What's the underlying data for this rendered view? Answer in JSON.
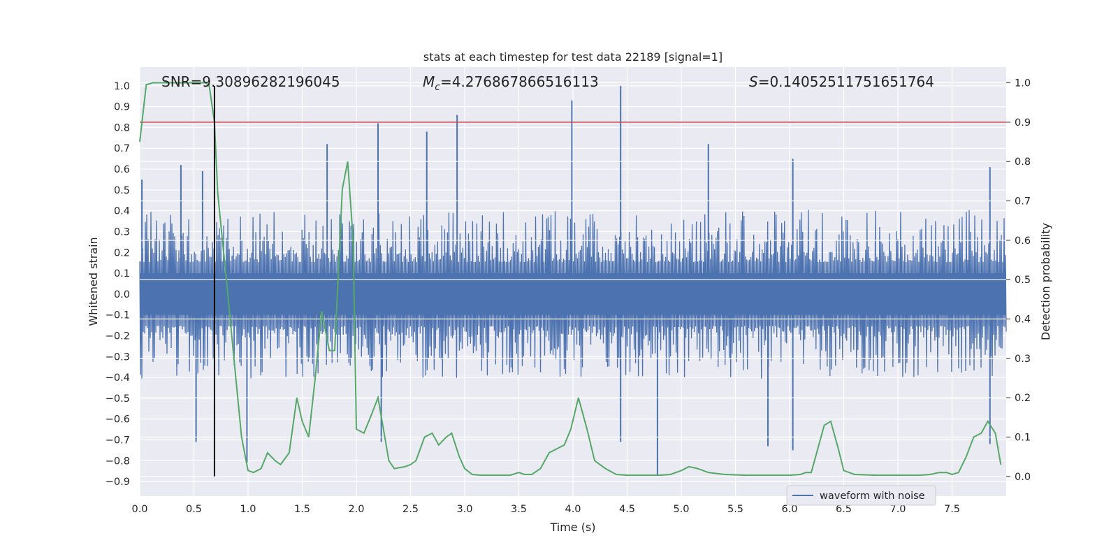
{
  "chart_data": {
    "type": "line",
    "title": "stats at each timestep for test data 22189 [signal=1]",
    "xlabel": "Time (s)",
    "ylabel_left": "Whitened strain",
    "ylabel_right": "Detection probability",
    "xlim": [
      0.0,
      8.0
    ],
    "ylim_left": [
      -0.97,
      1.09
    ],
    "ylim_right": [
      -0.05,
      1.04
    ],
    "x_ticks": [
      "0.0",
      "0.5",
      "1.0",
      "1.5",
      "2.0",
      "2.5",
      "3.0",
      "3.5",
      "4.0",
      "4.5",
      "5.0",
      "5.5",
      "6.0",
      "6.5",
      "7.0",
      "7.5"
    ],
    "y_ticks_left": [
      "-0.9",
      "-0.8",
      "-0.7",
      "-0.6",
      "-0.5",
      "-0.4",
      "-0.3",
      "-0.2",
      "-0.1",
      "0.0",
      "0.1",
      "0.2",
      "0.3",
      "0.4",
      "0.5",
      "0.6",
      "0.7",
      "0.8",
      "0.9",
      "1.0"
    ],
    "y_ticks_right": [
      "0.0",
      "0.1",
      "0.2",
      "0.3",
      "0.4",
      "0.5",
      "0.6",
      "0.7",
      "0.8",
      "0.9",
      "1.0"
    ],
    "grid": true,
    "annotations": {
      "snr": "SNR=9.30896282196045",
      "mc_symbol": "M",
      "mc_sub": "c",
      "mc_value": "=4.276867866516113",
      "s_symbol": "S",
      "s_value": "=0.14052511751651764"
    },
    "threshold": {
      "axis": "right",
      "value": 0.9,
      "color": "#c44e52"
    },
    "marker_line": {
      "x": 0.69,
      "y_range": [
        -0.875,
        1.0
      ],
      "color": "#000000"
    },
    "series": [
      {
        "name": "waveform with noise",
        "axis": "left",
        "style": "dense-noise",
        "color": "#4c72b0",
        "envelope": {
          "typical_abs": 0.28,
          "core_band": [
            -0.1,
            0.1
          ]
        },
        "peaks": [
          {
            "x": 0.02,
            "y": 0.55
          },
          {
            "x": 0.38,
            "y": 0.62
          },
          {
            "x": 0.58,
            "y": 0.59
          },
          {
            "x": 1.73,
            "y": 0.72
          },
          {
            "x": 2.2,
            "y": 0.82
          },
          {
            "x": 2.65,
            "y": 0.78
          },
          {
            "x": 2.93,
            "y": 0.86
          },
          {
            "x": 3.99,
            "y": 0.93
          },
          {
            "x": 4.44,
            "y": 1.0
          },
          {
            "x": 5.25,
            "y": 0.72
          },
          {
            "x": 6.03,
            "y": 0.65
          },
          {
            "x": 7.85,
            "y": 0.61
          }
        ],
        "troughs": [
          {
            "x": 0.52,
            "y": -0.71
          },
          {
            "x": 0.99,
            "y": -0.81
          },
          {
            "x": 2.23,
            "y": -0.71
          },
          {
            "x": 4.44,
            "y": -0.71
          },
          {
            "x": 4.78,
            "y": -0.87
          },
          {
            "x": 5.8,
            "y": -0.73
          },
          {
            "x": 6.03,
            "y": -0.75
          },
          {
            "x": 7.85,
            "y": -0.72
          }
        ]
      },
      {
        "name": "",
        "axis": "right",
        "color": "#55a868",
        "x": [
          0.0,
          0.06,
          0.12,
          0.2,
          0.3,
          0.4,
          0.5,
          0.6,
          0.64,
          0.69,
          0.72,
          0.8,
          0.88,
          0.94,
          1.0,
          1.05,
          1.12,
          1.18,
          1.25,
          1.3,
          1.38,
          1.45,
          1.5,
          1.56,
          1.62,
          1.68,
          1.75,
          1.8,
          1.87,
          1.92,
          1.97,
          2.0,
          2.07,
          2.13,
          2.2,
          2.3,
          2.35,
          2.45,
          2.5,
          2.55,
          2.63,
          2.7,
          2.76,
          2.83,
          2.88,
          2.95,
          3.0,
          3.07,
          3.15,
          3.25,
          3.35,
          3.42,
          3.5,
          3.55,
          3.62,
          3.7,
          3.78,
          3.85,
          3.92,
          3.98,
          4.05,
          4.13,
          4.2,
          4.3,
          4.4,
          4.5,
          4.6,
          4.7,
          4.8,
          4.9,
          5.0,
          5.07,
          5.15,
          5.25,
          5.4,
          5.6,
          5.8,
          6.0,
          6.1,
          6.15,
          6.2,
          6.25,
          6.32,
          6.38,
          6.45,
          6.5,
          6.6,
          6.8,
          7.0,
          7.2,
          7.3,
          7.38,
          7.45,
          7.5,
          7.56,
          7.63,
          7.7,
          7.77,
          7.83,
          7.9,
          7.95
        ],
        "y": [
          0.85,
          0.995,
          1.0,
          1.0,
          1.0,
          1.0,
          1.0,
          1.0,
          0.995,
          0.9,
          0.72,
          0.5,
          0.27,
          0.1,
          0.015,
          0.01,
          0.02,
          0.06,
          0.04,
          0.03,
          0.06,
          0.2,
          0.14,
          0.1,
          0.25,
          0.42,
          0.32,
          0.32,
          0.73,
          0.8,
          0.6,
          0.12,
          0.11,
          0.15,
          0.2,
          0.04,
          0.02,
          0.025,
          0.03,
          0.04,
          0.1,
          0.11,
          0.08,
          0.1,
          0.11,
          0.05,
          0.02,
          0.005,
          0.003,
          0.003,
          0.003,
          0.003,
          0.01,
          0.005,
          0.005,
          0.02,
          0.06,
          0.07,
          0.08,
          0.12,
          0.2,
          0.12,
          0.04,
          0.02,
          0.005,
          0.003,
          0.003,
          0.003,
          0.003,
          0.005,
          0.015,
          0.025,
          0.02,
          0.01,
          0.005,
          0.003,
          0.003,
          0.003,
          0.005,
          0.01,
          0.01,
          0.06,
          0.13,
          0.14,
          0.07,
          0.015,
          0.005,
          0.003,
          0.003,
          0.003,
          0.005,
          0.01,
          0.01,
          0.005,
          0.01,
          0.05,
          0.1,
          0.11,
          0.14,
          0.11,
          0.03
        ]
      }
    ],
    "legend": {
      "position": "lower-right",
      "entries": [
        "waveform with noise"
      ]
    }
  }
}
